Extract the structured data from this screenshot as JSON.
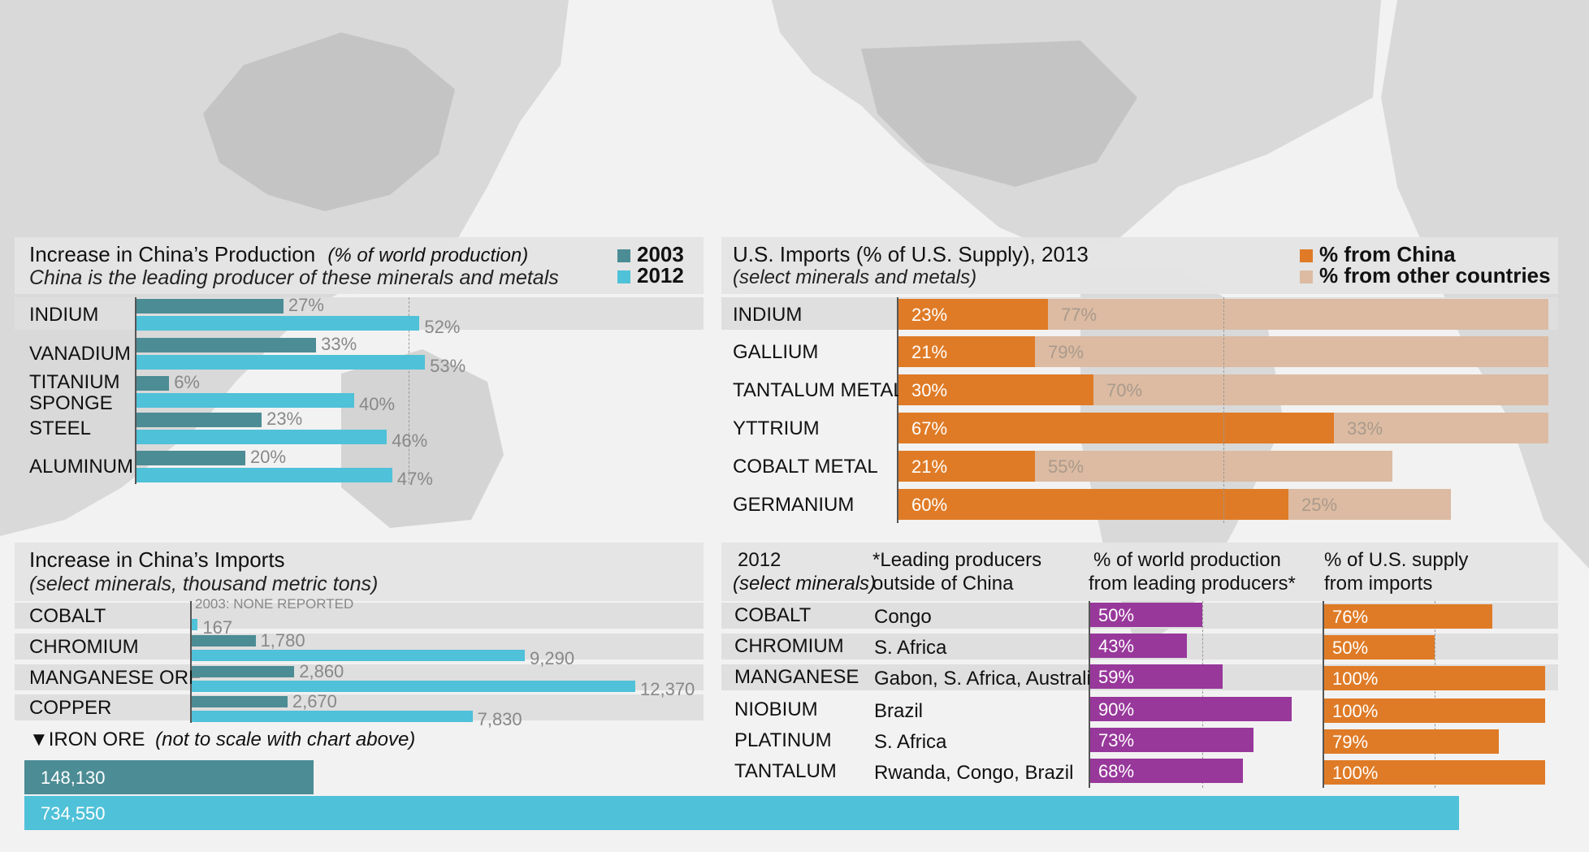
{
  "colors": {
    "teal_dark": "#4c8c95",
    "cyan": "#4fc1d8",
    "orange": "#df7b26",
    "tan": "#dcbba2",
    "purple": "#98389b",
    "land": "#d8d8d8",
    "ocean": "#f2f2f2"
  },
  "chart_data": [
    {
      "type": "bar",
      "title": "Increase in China’s Production",
      "title_note": "(% of world  production)",
      "subtitle": "China is the leading producer of these minerals and metals",
      "categories": [
        "INDIUM",
        "VANADIUM",
        "TITANIUM SPONGE",
        "STEEL",
        "ALUMINUM"
      ],
      "category_lines": [
        [
          "INDIUM"
        ],
        [
          "VANADIUM"
        ],
        [
          "TITANIUM",
          "SPONGE"
        ],
        [
          "STEEL"
        ],
        [
          "ALUMINUM"
        ]
      ],
      "series": [
        {
          "name": "2003",
          "color": "#4c8c95",
          "values": [
            27,
            33,
            6,
            23,
            20
          ],
          "labels": [
            "27%",
            "33%",
            "6%",
            "23%",
            "20%"
          ]
        },
        {
          "name": "2012",
          "color": "#4fc1d8",
          "values": [
            52,
            53,
            40,
            46,
            47
          ],
          "labels": [
            "52%",
            "53%",
            "40%",
            "46%",
            "47%"
          ]
        }
      ],
      "xlim": [
        0,
        100
      ],
      "reference_line": 50
    },
    {
      "type": "bar",
      "stacked": true,
      "title": "U.S. Imports (% of U.S. Supply), 2013",
      "subtitle": "(select minerals and metals)",
      "categories": [
        "INDIUM",
        "GALLIUM",
        "TANTALUM METAL",
        "YTTRIUM",
        "COBALT METAL",
        "GERMANIUM"
      ],
      "series": [
        {
          "name": "% from China",
          "color": "#df7b26",
          "values": [
            23,
            21,
            30,
            67,
            21,
            60
          ],
          "labels": [
            "23%",
            "21%",
            "30%",
            "67%",
            "21%",
            "60%"
          ]
        },
        {
          "name": "% from other countries",
          "color": "#dcbba2",
          "values": [
            77,
            79,
            70,
            33,
            55,
            25
          ],
          "labels": [
            "77%",
            "79%",
            "70%",
            "33%",
            "55%",
            "25%"
          ]
        }
      ],
      "xlim": [
        0,
        100
      ],
      "reference_line": 50
    },
    {
      "type": "bar",
      "title": "Increase in China’s Imports",
      "subtitle": "(select minerals, thousand metric tons)",
      "categories": [
        "COBALT",
        "CHROMIUM",
        "MANGANESE ORE",
        "COPPER"
      ],
      "series": [
        {
          "name": "2003",
          "color": "#4c8c95",
          "values": [
            null,
            1780,
            2860,
            2670
          ],
          "labels": [
            "2003: NONE REPORTED",
            "1,780",
            "2,860",
            "2,670"
          ]
        },
        {
          "name": "2012",
          "color": "#4fc1d8",
          "values": [
            167,
            9290,
            12370,
            7830
          ],
          "labels": [
            "167",
            "9,290",
            "12,370",
            "7,830"
          ]
        }
      ],
      "xlim": [
        0,
        12370
      ]
    },
    {
      "type": "bar",
      "title": "IRON ORE",
      "title_note": "(not to scale with chart above)",
      "marker": "▼",
      "categories": [
        "IRON ORE"
      ],
      "series": [
        {
          "name": "2003",
          "color": "#4c8c95",
          "values": [
            148130
          ],
          "labels": [
            "148,130"
          ]
        },
        {
          "name": "2012",
          "color": "#4fc1d8",
          "values": [
            734550
          ],
          "labels": [
            "734,550"
          ]
        }
      ],
      "xlim": [
        0,
        734550
      ]
    },
    {
      "type": "table",
      "header": {
        "year": "2012",
        "year_note": "(select minerals)",
        "producers": [
          "*Leading producers",
          "outside of China"
        ],
        "world": [
          "% of world production",
          "from leading producers*"
        ],
        "us": [
          "% of U.S. supply",
          "from imports"
        ]
      },
      "rows": [
        {
          "mineral": "COBALT",
          "producers": "Congo",
          "world_pct": 50,
          "world_label": "50%",
          "us_pct": 76,
          "us_label": "76%"
        },
        {
          "mineral": "CHROMIUM",
          "producers": "S. Africa",
          "world_pct": 43,
          "world_label": "43%",
          "us_pct": 50,
          "us_label": "50%"
        },
        {
          "mineral": "MANGANESE",
          "producers": "Gabon, S. Africa, Australia",
          "world_pct": 59,
          "world_label": "59%",
          "us_pct": 100,
          "us_label": "100%"
        },
        {
          "mineral": "NIOBIUM",
          "producers": "Brazil",
          "world_pct": 90,
          "world_label": "90%",
          "us_pct": 100,
          "us_label": "100%"
        },
        {
          "mineral": "PLATINUM",
          "producers": "S. Africa",
          "world_pct": 73,
          "world_label": "73%",
          "us_pct": 79,
          "us_label": "79%"
        },
        {
          "mineral": "TANTALUM",
          "producers": "Rwanda, Congo, Brazil",
          "world_pct": 68,
          "world_label": "68%",
          "us_pct": 100,
          "us_label": "100%"
        }
      ],
      "world_color": "#98389b",
      "us_color": "#df7b26"
    }
  ]
}
